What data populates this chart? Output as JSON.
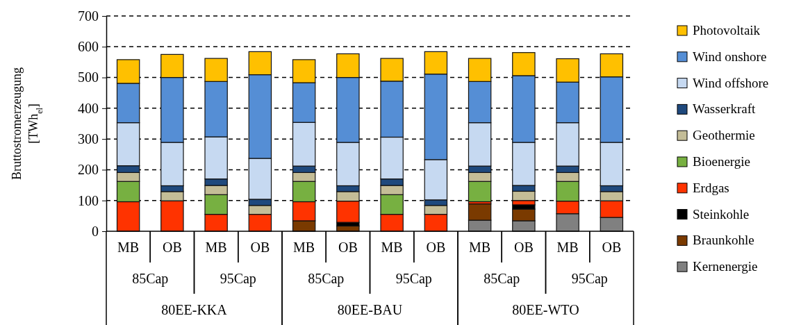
{
  "chart_data": {
    "type": "bar",
    "stacked": true,
    "ylabel": "Bruttostromerzeugung [TWh$_{el}$]",
    "categories": [
      "MB",
      "OB",
      "MB",
      "OB",
      "MB",
      "OB",
      "MB",
      "OB",
      "MB",
      "OB",
      "MB",
      "OB"
    ],
    "annotations": [
      "85Cap",
      "95Cap",
      "85Cap",
      "95Cap",
      "85Cap",
      "95Cap",
      "80EE-KKA",
      "80EE-BAU",
      "80EE-WTO"
    ],
    "ylim": [
      0,
      700
    ],
    "yticks": [
      0,
      100,
      200,
      300,
      400,
      500,
      600,
      700
    ],
    "grid": "y",
    "legend": "right",
    "series": [
      {
        "name": "Kernenergie",
        "color": "#808080",
        "values": [
          0,
          0,
          0,
          0,
          0,
          0,
          0,
          0,
          36,
          34,
          57,
          45
        ]
      },
      {
        "name": "Braunkohle",
        "color": "#7a3a00",
        "values": [
          0,
          0,
          0,
          0,
          34,
          17,
          0,
          0,
          53,
          38,
          0,
          0
        ]
      },
      {
        "name": "Steinkohle",
        "color": "#000000",
        "values": [
          0,
          0,
          0,
          0,
          0,
          12,
          0,
          0,
          0,
          14,
          0,
          0
        ]
      },
      {
        "name": "Erdgas",
        "color": "#ff3300",
        "values": [
          96,
          99,
          55,
          55,
          62,
          69,
          55,
          55,
          7,
          14,
          41,
          54
        ]
      },
      {
        "name": "Bioenergie",
        "color": "#77b041",
        "values": [
          66,
          0,
          64,
          0,
          66,
          0,
          64,
          0,
          66,
          0,
          64,
          0
        ]
      },
      {
        "name": "Geothermie",
        "color": "#c4bd97",
        "values": [
          29,
          30,
          30,
          29,
          29,
          31,
          30,
          29,
          29,
          30,
          29,
          30
        ]
      },
      {
        "name": "Wasserkraft",
        "color": "#1f497d",
        "values": [
          22,
          19,
          21,
          20,
          21,
          19,
          21,
          18,
          21,
          19,
          21,
          19
        ]
      },
      {
        "name": "Wind offshore",
        "color": "#c6d9f1",
        "values": [
          140,
          141,
          137,
          133,
          142,
          141,
          136,
          131,
          141,
          140,
          141,
          141
        ]
      },
      {
        "name": "Wind onshore",
        "color": "#558ed5",
        "values": [
          128,
          211,
          180,
          272,
          129,
          211,
          182,
          278,
          134,
          217,
          132,
          213
        ]
      },
      {
        "name": "Photovoltaik",
        "color": "#ffc000",
        "values": [
          77,
          75,
          75,
          75,
          75,
          77,
          74,
          73,
          75,
          75,
          76,
          75
        ]
      }
    ]
  }
}
